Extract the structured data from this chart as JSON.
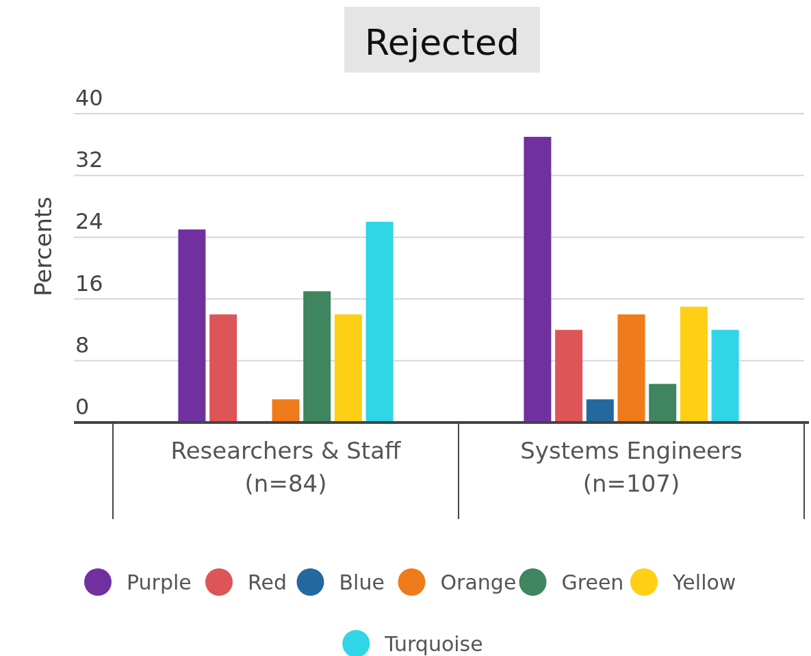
{
  "chart_data": {
    "type": "bar",
    "title": "Rejected",
    "ylabel": "Percents",
    "categories": [
      "Researchers & Staff\n(n=84)",
      "Systems Engineers\n(n=107)"
    ],
    "series": [
      {
        "name": "Purple",
        "color": "#7030a0",
        "values": [
          25,
          37
        ]
      },
      {
        "name": "Red",
        "color": "#de5558",
        "values": [
          14,
          12
        ]
      },
      {
        "name": "Blue",
        "color": "#23689f",
        "values": [
          0,
          3
        ]
      },
      {
        "name": "Orange",
        "color": "#f07b1a",
        "values": [
          3,
          14
        ]
      },
      {
        "name": "Green",
        "color": "#3e8560",
        "values": [
          17,
          5
        ]
      },
      {
        "name": "Yellow",
        "color": "#fecf14",
        "values": [
          14,
          15
        ]
      },
      {
        "name": "Turquoise",
        "color": "#30d5e6",
        "values": [
          26,
          12
        ]
      }
    ],
    "ylim": [
      0,
      40
    ],
    "yticks": [
      0,
      8,
      16,
      24,
      32,
      40
    ],
    "grid": "y",
    "legend": "bottom"
  }
}
